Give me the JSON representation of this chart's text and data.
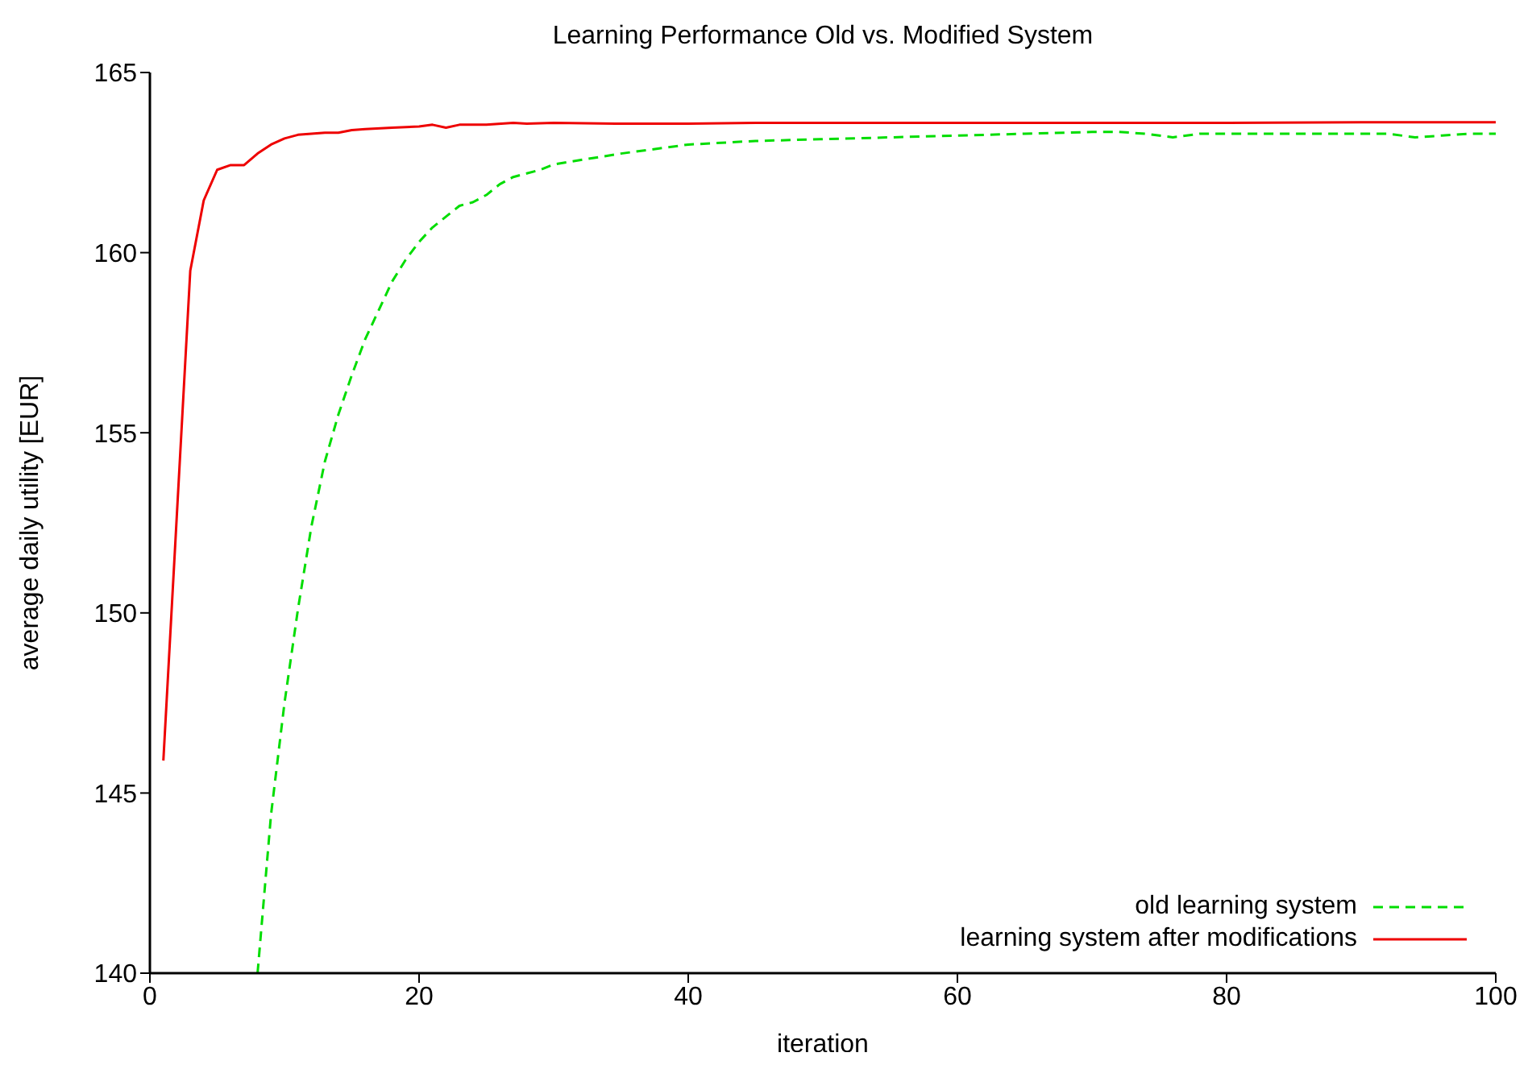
{
  "chart_data": {
    "type": "line",
    "title": "Learning Performance Old vs. Modified System",
    "xlabel": "iteration",
    "ylabel": "average daily utility [EUR]",
    "xlim": [
      0,
      100
    ],
    "xticks": [
      0,
      20,
      40,
      60,
      80,
      100
    ],
    "ylim": [
      140,
      165
    ],
    "yticks": [
      140,
      145,
      150,
      155,
      160,
      165
    ],
    "legend": "bottom right",
    "marker": "none",
    "series": [
      {
        "name": "old learning system",
        "color": "#00dd00",
        "line_style": "dashed",
        "x": [
          8,
          9,
          10,
          11,
          12,
          13,
          14,
          15,
          16,
          17,
          18,
          19,
          20,
          21,
          22,
          23,
          24,
          25,
          26,
          27,
          28,
          29,
          30,
          35,
          40,
          45,
          50,
          55,
          60,
          65,
          70,
          72,
          74,
          76,
          78,
          80,
          85,
          90,
          92,
          94,
          96,
          98,
          100
        ],
        "values": [
          140.0,
          144.4,
          147.5,
          150.1,
          152.4,
          154.2,
          155.5,
          156.6,
          157.6,
          158.4,
          159.2,
          159.8,
          160.3,
          160.7,
          161.0,
          161.3,
          161.4,
          161.6,
          161.9,
          162.1,
          162.2,
          162.3,
          162.45,
          162.75,
          163.0,
          163.1,
          163.15,
          163.2,
          163.25,
          163.3,
          163.35,
          163.35,
          163.3,
          163.2,
          163.3,
          163.3,
          163.3,
          163.3,
          163.3,
          163.2,
          163.25,
          163.3,
          163.3
        ]
      },
      {
        "name": "learning system after modifications",
        "color": "#ee0000",
        "line_style": "solid",
        "x": [
          1,
          2,
          3,
          4,
          5,
          6,
          7,
          8,
          9,
          10,
          11,
          12,
          13,
          14,
          15,
          16,
          18,
          20,
          21,
          22,
          23,
          25,
          27,
          28,
          30,
          35,
          40,
          45,
          50,
          60,
          70,
          80,
          90,
          100
        ],
        "values": [
          145.9,
          152.7,
          159.5,
          161.45,
          162.3,
          162.43,
          162.43,
          162.75,
          163.0,
          163.17,
          163.27,
          163.3,
          163.33,
          163.33,
          163.4,
          163.43,
          163.47,
          163.5,
          163.55,
          163.47,
          163.55,
          163.55,
          163.6,
          163.58,
          163.6,
          163.58,
          163.58,
          163.6,
          163.6,
          163.6,
          163.6,
          163.6,
          163.62,
          163.62
        ]
      }
    ]
  }
}
